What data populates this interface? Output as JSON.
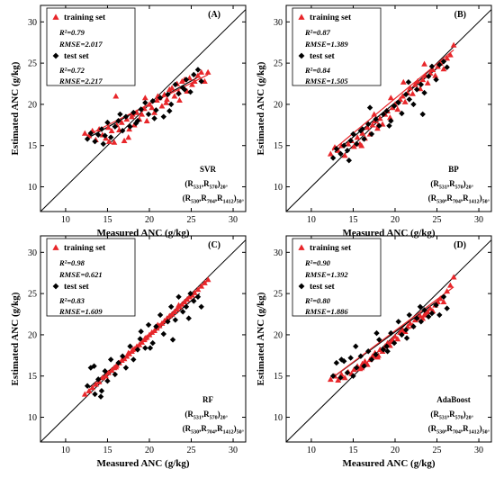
{
  "colors": {
    "training": "#e8262a",
    "test": "#000000",
    "identity": "#000000"
  },
  "shared": {
    "xlabel": "Measured ANC  (g/kg)",
    "ylabel": "Estimated ANC (g/kg)",
    "xticks": [
      10,
      15,
      20,
      25,
      30
    ],
    "yticks": [
      10,
      15,
      20,
      25,
      30
    ],
    "xlim": [
      7,
      31.5
    ],
    "ylim": [
      7,
      32
    ],
    "legend_training": "training set",
    "legend_test": "test set",
    "band1_main": "(R",
    "band1_sub_a": "531",
    "band1_mid": ",R",
    "band1_sub_b": "570",
    "band1_close": ")",
    "band1_suffix": "20°",
    "band2_main": "(R",
    "band2_sub_a": "530",
    "band2_mid_a": ",R",
    "band2_sub_b": "704",
    "band2_mid_b": ",R",
    "band2_sub_c": "1412",
    "band2_close": ")",
    "band2_suffix": "50°"
  },
  "chart_data": [
    {
      "type": "scatter",
      "panel": "(A)",
      "model": "SVR",
      "train_r2": "R²=0.79",
      "train_rmse": "RMSE=2.017",
      "test_r2": "R²=0.72",
      "test_rmse": "RMSE=2.217",
      "train_fit": [
        [
          12.5,
          16.2
        ],
        [
          27.0,
          23.6
        ]
      ],
      "test_fit": [
        [
          12.8,
          16.0
        ],
        [
          26.0,
          23.4
        ]
      ],
      "series": [
        {
          "name": "training set",
          "x": [
            12.3,
            12.8,
            13.2,
            13.6,
            14.0,
            14.4,
            14.8,
            15.1,
            15.5,
            15.8,
            16.1,
            16.4,
            16.7,
            17.0,
            17.3,
            17.6,
            17.9,
            18.2,
            18.5,
            18.8,
            19.1,
            19.4,
            19.7,
            20.0,
            20.3,
            20.6,
            20.9,
            21.2,
            21.5,
            21.8,
            22.1,
            22.4,
            22.7,
            23.0,
            23.3,
            23.6,
            23.9,
            24.2,
            24.5,
            24.8,
            25.1,
            25.4,
            25.8,
            26.2,
            26.6,
            27.0,
            16.0,
            17.5,
            19.5,
            21.0,
            23.5,
            18.0,
            15.2,
            22.0
          ],
          "y": [
            16.5,
            16.2,
            16.8,
            15.7,
            17.0,
            16.3,
            15.9,
            17.2,
            16.8,
            15.4,
            17.5,
            16.9,
            17.8,
            15.6,
            18.2,
            17.0,
            18.5,
            17.5,
            19.0,
            18.2,
            18.8,
            19.5,
            18.0,
            20.0,
            19.6,
            19.0,
            20.5,
            20.8,
            19.8,
            21.2,
            20.6,
            21.8,
            22.0,
            21.0,
            22.5,
            20.5,
            22.8,
            23.0,
            21.6,
            23.2,
            22.4,
            22.8,
            23.5,
            23.9,
            22.8,
            23.9,
            21.0,
            16.0,
            20.8,
            21.0,
            21.5,
            18.8,
            15.5,
            20.2
          ]
        },
        {
          "name": "test set",
          "x": [
            12.6,
            13.0,
            13.5,
            13.9,
            14.3,
            14.7,
            15.0,
            15.4,
            15.9,
            16.3,
            16.8,
            17.2,
            17.7,
            18.1,
            18.6,
            19.0,
            19.5,
            19.9,
            20.4,
            20.8,
            21.3,
            21.7,
            22.2,
            22.6,
            23.1,
            23.5,
            24.0,
            24.4,
            24.9,
            25.3,
            25.8,
            26.2,
            14.5,
            16.5,
            20.6,
            22.4,
            24.2,
            18.4
          ],
          "y": [
            15.8,
            16.5,
            15.5,
            16.3,
            17.0,
            16.2,
            17.8,
            16.0,
            17.3,
            18.0,
            16.8,
            18.5,
            17.3,
            19.0,
            18.0,
            19.4,
            20.2,
            18.8,
            20.4,
            19.3,
            20.8,
            18.5,
            21.2,
            20.0,
            22.4,
            21.3,
            22.0,
            23.0,
            21.5,
            23.6,
            24.2,
            22.8,
            15.2,
            18.8,
            18.3,
            19.2,
            21.8,
            17.7
          ]
        }
      ]
    },
    {
      "type": "scatter",
      "panel": "(B)",
      "model": "BP",
      "train_r2": "R²=0.87",
      "train_rmse": "RMSE=1.389",
      "test_r2": "R²=0.84",
      "test_rmse": "RMSE=1.505",
      "train_fit": [
        [
          12.5,
          14.4
        ],
        [
          27.0,
          26.6
        ]
      ],
      "test_fit": [
        [
          12.8,
          14.2
        ],
        [
          26.0,
          25.2
        ]
      ],
      "series": [
        {
          "name": "training set",
          "x": [
            12.3,
            12.8,
            13.2,
            13.6,
            14.0,
            14.4,
            14.8,
            15.1,
            15.5,
            15.8,
            16.1,
            16.4,
            16.7,
            17.0,
            17.3,
            17.6,
            17.9,
            18.2,
            18.5,
            18.8,
            19.1,
            19.4,
            19.7,
            20.0,
            20.3,
            20.6,
            20.9,
            21.2,
            21.5,
            21.8,
            22.1,
            22.4,
            22.7,
            23.0,
            23.3,
            23.6,
            23.9,
            24.2,
            24.5,
            24.8,
            25.1,
            25.4,
            25.8,
            26.2,
            26.6,
            27.0,
            16.0,
            17.5,
            19.5,
            21.0,
            23.5,
            18.0
          ],
          "y": [
            14.0,
            14.8,
            14.4,
            15.0,
            13.8,
            15.2,
            15.6,
            14.9,
            16.0,
            15.2,
            16.5,
            15.9,
            17.2,
            16.4,
            17.5,
            18.0,
            17.1,
            18.3,
            17.6,
            18.8,
            19.2,
            18.4,
            19.6,
            20.0,
            19.4,
            20.6,
            21.0,
            20.3,
            21.4,
            22.0,
            21.3,
            22.4,
            22.8,
            21.9,
            23.0,
            23.5,
            22.6,
            23.8,
            24.2,
            23.5,
            24.6,
            25.0,
            24.3,
            25.6,
            26.0,
            27.2,
            15.0,
            18.8,
            20.8,
            22.7,
            24.9,
            17.5
          ]
        },
        {
          "name": "test set",
          "x": [
            12.6,
            13.0,
            13.5,
            13.9,
            14.3,
            14.7,
            15.0,
            15.4,
            15.9,
            16.3,
            16.8,
            17.2,
            17.7,
            18.1,
            18.6,
            19.0,
            19.5,
            19.9,
            20.4,
            20.8,
            21.3,
            21.7,
            22.2,
            22.6,
            23.1,
            23.5,
            24.0,
            24.4,
            24.9,
            25.3,
            25.8,
            26.2,
            14.5,
            17.0,
            21.6,
            23.3,
            19.3,
            16.1
          ],
          "y": [
            13.5,
            14.6,
            14.0,
            15.0,
            14.4,
            15.6,
            16.4,
            15.2,
            16.8,
            15.8,
            17.6,
            16.4,
            18.2,
            17.4,
            18.8,
            19.2,
            18.0,
            19.8,
            20.2,
            18.9,
            21.2,
            20.6,
            20.0,
            21.8,
            22.4,
            21.4,
            23.4,
            24.6,
            23.0,
            24.8,
            25.2,
            24.5,
            13.2,
            19.6,
            22.7,
            18.8,
            17.4,
            17.0
          ]
        }
      ]
    },
    {
      "type": "scatter",
      "panel": "(C)",
      "model": "RF",
      "train_r2": "R²=0.98",
      "train_rmse": "RMSE=0.621",
      "test_r2": "R²=0.83",
      "test_rmse": "RMSE=1.609",
      "train_fit": [
        [
          12.5,
          13.0
        ],
        [
          27.0,
          26.6
        ]
      ],
      "test_fit": [
        [
          12.8,
          13.6
        ],
        [
          26.0,
          25.0
        ]
      ],
      "series": [
        {
          "name": "training set",
          "x": [
            12.3,
            12.8,
            13.2,
            13.6,
            14.0,
            14.4,
            14.8,
            15.1,
            15.5,
            15.8,
            16.1,
            16.4,
            16.7,
            17.0,
            17.3,
            17.6,
            17.9,
            18.2,
            18.5,
            18.8,
            19.1,
            19.4,
            19.7,
            20.0,
            20.3,
            20.6,
            20.9,
            21.2,
            21.5,
            21.8,
            22.1,
            22.4,
            22.7,
            23.0,
            23.3,
            23.6,
            23.9,
            24.2,
            24.5,
            24.8,
            25.1,
            25.4,
            25.8,
            26.2,
            26.6,
            27.0,
            16.0,
            17.5,
            19.5,
            21.0,
            23.5,
            18.0
          ],
          "y": [
            12.8,
            13.2,
            13.6,
            14.0,
            14.3,
            14.8,
            15.0,
            15.4,
            15.7,
            16.0,
            16.3,
            16.6,
            16.9,
            17.1,
            17.4,
            17.7,
            18.0,
            18.3,
            18.6,
            18.8,
            19.1,
            19.4,
            19.7,
            20.0,
            20.3,
            20.5,
            20.8,
            21.1,
            21.4,
            21.7,
            22.0,
            22.3,
            22.5,
            22.8,
            23.1,
            23.4,
            23.7,
            24.0,
            24.3,
            24.6,
            24.8,
            25.1,
            25.5,
            25.9,
            26.3,
            26.7,
            16.1,
            17.8,
            19.6,
            21.2,
            23.6,
            18.2
          ]
        },
        {
          "name": "test set",
          "x": [
            12.6,
            13.0,
            13.5,
            13.9,
            14.3,
            14.7,
            15.0,
            15.4,
            15.9,
            16.3,
            16.8,
            17.2,
            17.7,
            18.1,
            18.6,
            19.0,
            19.5,
            19.9,
            20.4,
            20.8,
            21.3,
            21.7,
            22.2,
            22.6,
            23.1,
            23.5,
            24.0,
            24.4,
            24.9,
            25.3,
            25.8,
            26.2,
            13.4,
            14.2,
            20.1,
            22.8,
            24.7,
            18.9
          ],
          "y": [
            13.8,
            16.0,
            12.8,
            14.6,
            13.2,
            15.6,
            14.4,
            17.0,
            15.2,
            16.6,
            17.4,
            16.0,
            18.6,
            17.0,
            18.2,
            20.4,
            18.4,
            21.2,
            19.0,
            21.0,
            22.4,
            20.1,
            21.6,
            23.4,
            21.8,
            24.6,
            22.8,
            23.4,
            25.0,
            24.1,
            24.6,
            23.4,
            16.2,
            12.5,
            18.4,
            19.4,
            22.0,
            19.5
          ]
        }
      ]
    },
    {
      "type": "scatter",
      "panel": "(D)",
      "model": "AdaBoost",
      "train_r2": "R²=0.90",
      "train_rmse": "RMSE=1.392",
      "test_r2": "R²=0.80",
      "test_rmse": "RMSE=1.886",
      "train_fit": [
        [
          12.5,
          14.8
        ],
        [
          27.0,
          25.8
        ]
      ],
      "test_fit": [
        [
          12.8,
          15.0
        ],
        [
          26.0,
          24.8
        ]
      ],
      "series": [
        {
          "name": "training set",
          "x": [
            12.3,
            12.8,
            13.2,
            13.6,
            14.0,
            14.4,
            14.8,
            15.1,
            15.5,
            15.8,
            16.1,
            16.4,
            16.7,
            17.0,
            17.3,
            17.6,
            17.9,
            18.2,
            18.5,
            18.8,
            19.1,
            19.4,
            19.7,
            20.0,
            20.3,
            20.6,
            20.9,
            21.2,
            21.5,
            21.8,
            22.1,
            22.4,
            22.7,
            23.0,
            23.3,
            23.6,
            23.9,
            24.2,
            24.5,
            24.8,
            25.1,
            25.4,
            25.8,
            26.2,
            26.6,
            27.0,
            16.0,
            17.5,
            19.5,
            21.0,
            23.5,
            18.0
          ],
          "y": [
            14.6,
            15.0,
            14.5,
            15.2,
            14.8,
            15.5,
            15.3,
            15.8,
            16.2,
            15.9,
            16.5,
            16.8,
            16.4,
            17.0,
            17.4,
            17.8,
            17.3,
            18.2,
            18.0,
            18.6,
            19.0,
            18.7,
            19.4,
            19.8,
            19.5,
            20.3,
            20.6,
            20.4,
            21.0,
            21.4,
            21.1,
            21.8,
            22.0,
            22.3,
            22.0,
            22.6,
            22.8,
            23.2,
            22.9,
            23.6,
            24.0,
            24.4,
            24.0,
            25.3,
            26.0,
            27.0,
            16.0,
            17.5,
            19.2,
            20.4,
            22.4,
            17.5
          ]
        },
        {
          "name": "test set",
          "x": [
            12.6,
            13.0,
            13.5,
            13.9,
            14.3,
            14.7,
            15.0,
            15.4,
            15.9,
            16.3,
            16.8,
            17.2,
            17.7,
            18.1,
            18.6,
            19.0,
            19.5,
            19.9,
            20.4,
            20.8,
            21.3,
            21.7,
            22.2,
            22.6,
            23.1,
            23.5,
            24.0,
            24.4,
            24.9,
            25.3,
            25.8,
            26.2,
            13.6,
            15.3,
            21.4,
            23.0,
            17.8,
            19.1
          ],
          "y": [
            15.0,
            16.6,
            14.8,
            16.8,
            15.4,
            17.2,
            15.0,
            16.0,
            17.4,
            16.2,
            18.0,
            17.0,
            17.6,
            19.4,
            18.2,
            18.6,
            20.2,
            19.0,
            21.6,
            20.0,
            20.6,
            22.4,
            21.0,
            22.0,
            21.6,
            23.0,
            22.2,
            22.6,
            23.6,
            22.4,
            24.6,
            23.2,
            17.0,
            18.6,
            19.6,
            23.4,
            20.2,
            18.0
          ]
        }
      ]
    }
  ]
}
